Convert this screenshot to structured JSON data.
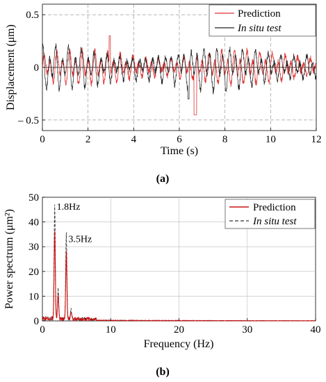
{
  "chart_data": [
    {
      "type": "line",
      "panel_label": "(a)",
      "xlabel": "Time (s)",
      "ylabel": "Displacement (μm)",
      "xlim": [
        0,
        12
      ],
      "ylim": [
        -0.6,
        0.6
      ],
      "xticks": [
        0,
        2,
        4,
        6,
        8,
        10,
        12
      ],
      "xtick_labels": [
        "0",
        "2",
        "4",
        "6",
        "8",
        "10",
        "12"
      ],
      "yticks": [
        -0.5,
        0,
        0.5
      ],
      "ytick_labels": [
        "– 0.5",
        "0",
        "0.5"
      ],
      "grid": true,
      "legend_position": "top-right",
      "series": [
        {
          "name": "Prediction",
          "color": "#e03030",
          "amplitude": 0.17,
          "peak_min": -0.45,
          "peak_max": 0.3
        },
        {
          "name": "In situ test",
          "color": "#222222",
          "amplitude": 0.22,
          "peak_min": -0.3,
          "peak_max": 0.28
        }
      ]
    },
    {
      "type": "line",
      "panel_label": "(b)",
      "xlabel": "Frequency (Hz)",
      "ylabel": "Power spectrum (μm²)",
      "xlim": [
        0,
        40
      ],
      "ylim": [
        0,
        50
      ],
      "xticks": [
        0,
        10,
        20,
        30,
        40
      ],
      "xtick_labels": [
        "0",
        "10",
        "20",
        "30",
        "40"
      ],
      "yticks": [
        0,
        10,
        20,
        30,
        40,
        50
      ],
      "ytick_labels": [
        "0",
        "10",
        "20",
        "30",
        "40",
        "50"
      ],
      "grid": true,
      "legend_position": "top-right",
      "annotations": [
        {
          "text": "1.8Hz",
          "x": 1.8,
          "y": 46
        },
        {
          "text": "3.5Hz",
          "x": 3.5,
          "y": 33
        }
      ],
      "series": [
        {
          "name": "Prediction",
          "color": "#cc1111",
          "style": "solid",
          "peaks": [
            {
              "x": 1.8,
              "y": 36
            },
            {
              "x": 2.3,
              "y": 10
            },
            {
              "x": 3.5,
              "y": 27
            },
            {
              "x": 4.2,
              "y": 3
            }
          ]
        },
        {
          "name": "In situ test",
          "color": "#333333",
          "style": "dashed",
          "peaks": [
            {
              "x": 1.8,
              "y": 46
            },
            {
              "x": 2.3,
              "y": 12
            },
            {
              "x": 3.5,
              "y": 35
            },
            {
              "x": 4.2,
              "y": 4
            }
          ]
        }
      ]
    }
  ]
}
